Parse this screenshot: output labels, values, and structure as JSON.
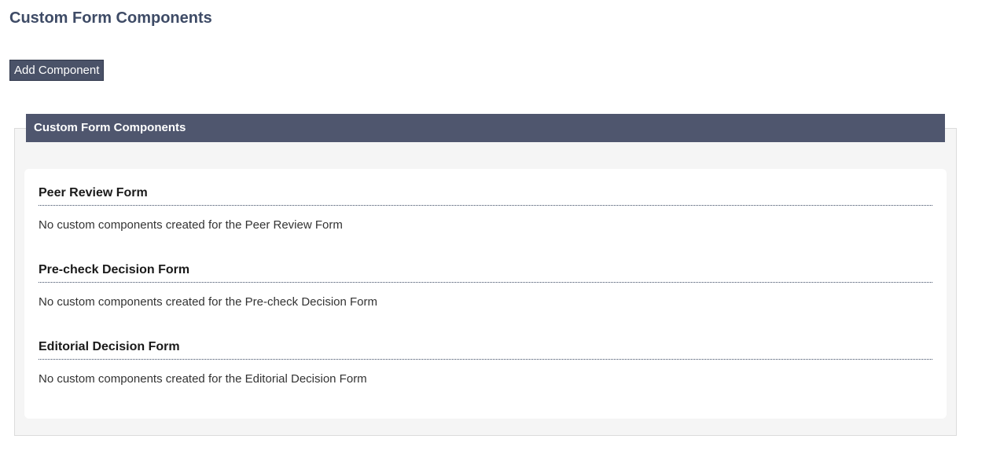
{
  "page": {
    "title": "Custom Form Components"
  },
  "toolbar": {
    "add_button_label": "Add Component"
  },
  "panel": {
    "title": "Custom Form Components"
  },
  "sections": [
    {
      "name": "Peer Review Form",
      "empty_message": "No custom components created for the Peer Review Form"
    },
    {
      "name": "Pre-check Decision Form",
      "empty_message": "No custom components created for the Pre-check Decision Form"
    },
    {
      "name": "Editorial Decision Form",
      "empty_message": "No custom components created for the Editorial Decision Form"
    }
  ],
  "colors": {
    "accent_slate": "#4F566E",
    "button_bg": "#4A5268",
    "page_title_text": "#3E4B66",
    "panel_bg": "#F5F5F5",
    "panel_border": "#DCDCDC",
    "dotted_rule": "#3C4A63"
  }
}
